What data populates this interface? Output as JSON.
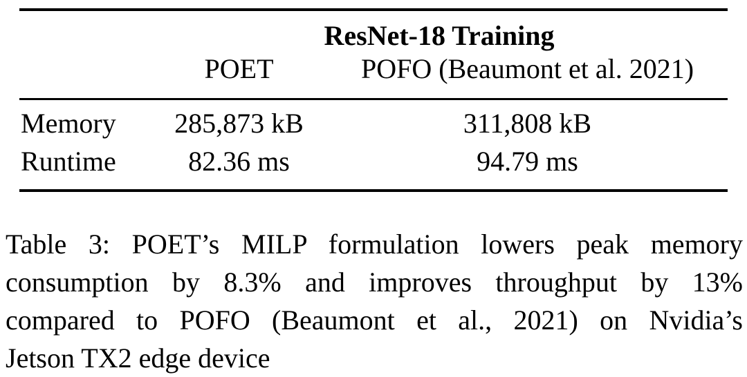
{
  "table": {
    "group_header": "ResNet-18 Training",
    "col_headers": {
      "poet": "POET",
      "pofo": "POFO (Beaumont et al. 2021)"
    },
    "rows": [
      {
        "label": "Memory",
        "poet": "285,873 kB",
        "pofo": "311,808 kB"
      },
      {
        "label": "Runtime",
        "poet": "82.36 ms",
        "pofo": "94.79 ms"
      }
    ]
  },
  "caption": {
    "lines": [
      "Table 3: POET’s MILP formulation lowers peak memory",
      "consumption by 8.3% and improves throughput by 13%",
      "compared to POFO (Beaumont et al., 2021) on Nvidia’s",
      "Jetson TX2 edge device"
    ],
    "full_text": "Table 3: POET’s MILP formulation lowers peak memory consumption by 8.3% and improves throughput by 13% compared to POFO (Beaumont et al., 2021) on Nvidia’s Jetson TX2 edge device"
  },
  "colors": {
    "text": "#000000",
    "background": "#ffffff",
    "rule": "#000000"
  },
  "chart_data": {
    "type": "table",
    "title": "ResNet-18 Training",
    "columns": [
      "",
      "POET",
      "POFO (Beaumont et al. 2021)"
    ],
    "rows": [
      [
        "Memory",
        "285,873 kB",
        "311,808 kB"
      ],
      [
        "Runtime",
        "82.36 ms",
        "94.79 ms"
      ]
    ]
  }
}
